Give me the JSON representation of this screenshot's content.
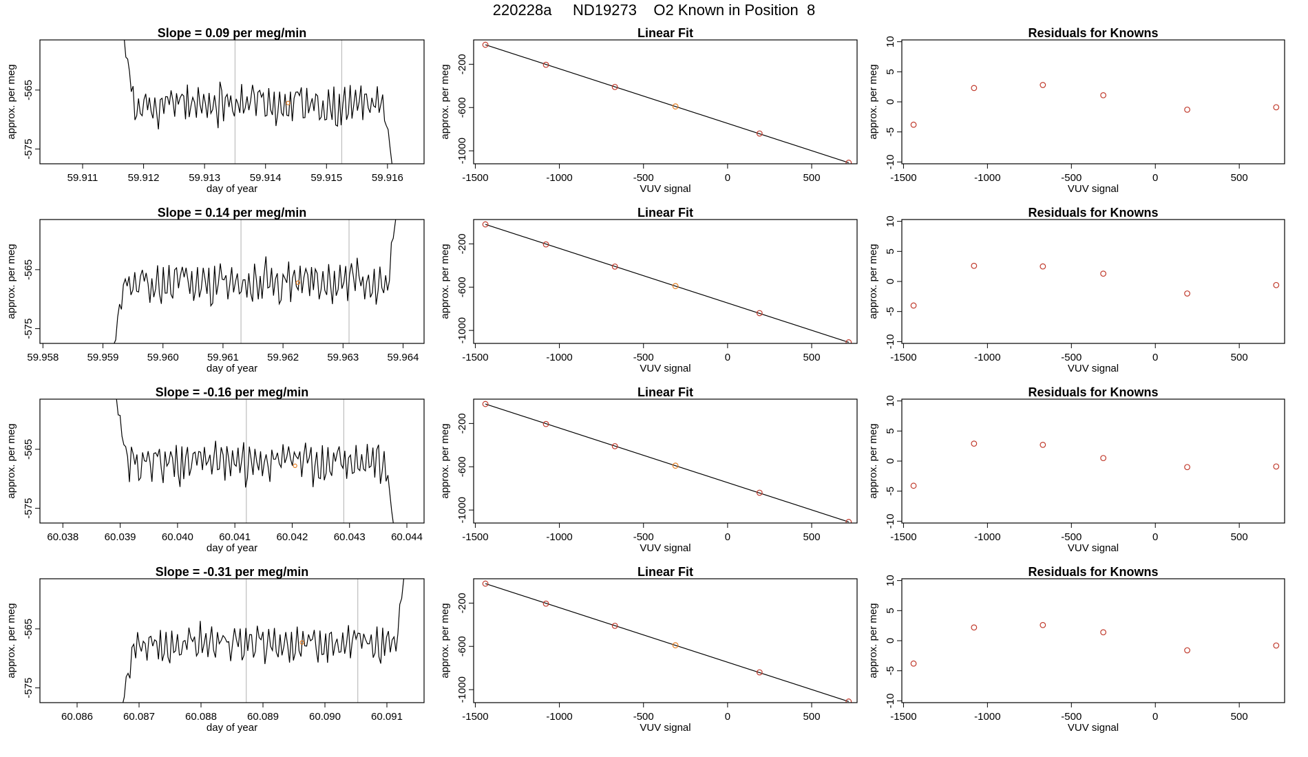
{
  "page_title": "220228a     ND19273    O2 Known in Position  8",
  "colors": {
    "line": "#000000",
    "point": "#c0392b",
    "known_point": "#e67e22",
    "marker_line": "#bdbdbd",
    "frame": "#000000"
  },
  "chart_data": [
    {
      "type": "line",
      "panel": "time-series",
      "row": 1,
      "title": "Slope =  0.09  per meg/min",
      "xlabel": "day of year",
      "ylabel": "approx. per meg",
      "xlim": [
        59.9103,
        59.9166
      ],
      "ylim": [
        -577.5,
        -556.5
      ],
      "xticks": [
        59.911,
        59.912,
        59.913,
        59.914,
        59.915,
        59.916
      ],
      "xtick_labels": [
        "59.911",
        "59.912",
        "59.913",
        "59.914",
        "59.915",
        "59.916"
      ],
      "yticks": [
        -565,
        -575
      ],
      "ytick_labels": [
        "-565",
        "-575"
      ],
      "vlines": [
        59.9135,
        59.91525
      ],
      "start": 59.91165,
      "end": 59.9161,
      "rise": "top",
      "fall": "bottom",
      "baseline": -567.5,
      "amplitude": 3.2,
      "seed": 11,
      "highlight": {
        "x": 59.91437,
        "y": -567.2
      }
    },
    {
      "type": "scatter",
      "panel": "linear-fit",
      "row": 1,
      "title": "Linear Fit",
      "xlabel": "VUV signal",
      "ylabel": "approx. per meg",
      "xlim": [
        -1510,
        770
      ],
      "ylim": [
        -1120,
        25
      ],
      "xticks": [
        -1500,
        -1000,
        -500,
        0,
        500
      ],
      "xtick_labels": [
        "-1500",
        "-1000",
        "-500",
        "0",
        "500"
      ],
      "yticks": [
        -200,
        -600,
        -1000
      ],
      "ytick_labels": [
        "-200",
        "-600",
        "-1000"
      ],
      "points": [
        [
          -1440,
          -20
        ],
        [
          -1080,
          -205
        ],
        [
          -670,
          -410
        ],
        [
          -310,
          -590
        ],
        [
          190,
          -840
        ],
        [
          720,
          -1110
        ]
      ],
      "known_index": 3,
      "fit_line": [
        [
          -1440,
          -20
        ],
        [
          720,
          -1110
        ]
      ]
    },
    {
      "type": "scatter",
      "panel": "residuals",
      "row": 1,
      "title": "Residuals for Knowns",
      "xlabel": "VUV signal",
      "ylabel": "approx. per meg",
      "xlim": [
        -1510,
        770
      ],
      "ylim": [
        -10.3,
        10.3
      ],
      "xticks": [
        -1500,
        -1000,
        -500,
        0,
        500
      ],
      "xtick_labels": [
        "-1500",
        "-1000",
        "-500",
        "0",
        "500"
      ],
      "yticks": [
        10,
        5,
        0,
        -5,
        -10
      ],
      "ytick_labels": [
        "10",
        "5",
        "0",
        "-5",
        "-10"
      ],
      "points": [
        [
          -1440,
          -3.8
        ],
        [
          -1080,
          2.3
        ],
        [
          -670,
          2.8
        ],
        [
          -310,
          1.1
        ],
        [
          190,
          -1.3
        ],
        [
          720,
          -0.9
        ]
      ]
    },
    {
      "type": "line",
      "panel": "time-series",
      "row": 2,
      "title": "Slope =  0.14  per meg/min",
      "xlabel": "day of year",
      "ylabel": "approx. per meg",
      "xlim": [
        59.95795,
        59.96435
      ],
      "ylim": [
        -577.5,
        -556.5
      ],
      "xticks": [
        59.958,
        59.959,
        59.96,
        59.961,
        59.962,
        59.963,
        59.964
      ],
      "xtick_labels": [
        "59.958",
        "59.959",
        "59.960",
        "59.961",
        "59.962",
        "59.963",
        "59.964"
      ],
      "yticks": [
        -565,
        -575
      ],
      "ytick_labels": [
        "-565",
        "-575"
      ],
      "vlines": [
        59.9613,
        59.9631
      ],
      "start": 59.95915,
      "end": 59.9639,
      "rise": "bottom",
      "fall": "top",
      "baseline": -567,
      "amplitude": 3.3,
      "seed": 23,
      "highlight": {
        "x": 59.96225,
        "y": -567.2
      }
    },
    {
      "type": "scatter",
      "panel": "linear-fit",
      "row": 2,
      "title": "Linear Fit",
      "xlabel": "VUV signal",
      "ylabel": "approx. per meg",
      "xlim": [
        -1510,
        770
      ],
      "ylim": [
        -1120,
        25
      ],
      "xticks": [
        -1500,
        -1000,
        -500,
        0,
        500
      ],
      "xtick_labels": [
        "-1500",
        "-1000",
        "-500",
        "0",
        "500"
      ],
      "yticks": [
        -200,
        -600,
        -1000
      ],
      "ytick_labels": [
        "-200",
        "-600",
        "-1000"
      ],
      "points": [
        [
          -1440,
          -20
        ],
        [
          -1080,
          -205
        ],
        [
          -670,
          -410
        ],
        [
          -310,
          -590
        ],
        [
          190,
          -840
        ],
        [
          720,
          -1110
        ]
      ],
      "known_index": 3,
      "fit_line": [
        [
          -1440,
          -20
        ],
        [
          720,
          -1110
        ]
      ]
    },
    {
      "type": "scatter",
      "panel": "residuals",
      "row": 2,
      "title": "Residuals for Knowns",
      "xlabel": "VUV signal",
      "ylabel": "approx. per meg",
      "xlim": [
        -1510,
        770
      ],
      "ylim": [
        -10.3,
        10.3
      ],
      "xticks": [
        -1500,
        -1000,
        -500,
        0,
        500
      ],
      "xtick_labels": [
        "-1500",
        "-1000",
        "-500",
        "0",
        "500"
      ],
      "yticks": [
        10,
        5,
        0,
        -5,
        -10
      ],
      "ytick_labels": [
        "10",
        "5",
        "0",
        "-5",
        "-10"
      ],
      "points": [
        [
          -1440,
          -4.0
        ],
        [
          -1080,
          2.6
        ],
        [
          -670,
          2.5
        ],
        [
          -310,
          1.3
        ],
        [
          190,
          -2.0
        ],
        [
          720,
          -0.6
        ]
      ]
    },
    {
      "type": "line",
      "panel": "time-series",
      "row": 3,
      "title": "Slope =  -0.16  per meg/min",
      "xlabel": "day of year",
      "ylabel": "approx. per meg",
      "xlim": [
        60.0376,
        60.0443
      ],
      "ylim": [
        -577.5,
        -556.5
      ],
      "xticks": [
        60.038,
        60.039,
        60.04,
        60.041,
        60.042,
        60.043,
        60.044
      ],
      "xtick_labels": [
        "60.038",
        "60.039",
        "60.040",
        "60.041",
        "60.042",
        "60.043",
        "60.044"
      ],
      "yticks": [
        -565,
        -575
      ],
      "ytick_labels": [
        "-565",
        "-575"
      ],
      "vlines": [
        60.0412,
        60.0429
      ],
      "start": 60.0389,
      "end": 60.0438,
      "rise": "top",
      "fall": "bottom",
      "baseline": -567.3,
      "amplitude": 3.1,
      "seed": 37,
      "highlight": {
        "x": 60.04205,
        "y": -567.8
      }
    },
    {
      "type": "scatter",
      "panel": "linear-fit",
      "row": 3,
      "title": "Linear Fit",
      "xlabel": "VUV signal",
      "ylabel": "approx. per meg",
      "xlim": [
        -1510,
        770
      ],
      "ylim": [
        -1120,
        25
      ],
      "xticks": [
        -1500,
        -1000,
        -500,
        0,
        500
      ],
      "xtick_labels": [
        "-1500",
        "-1000",
        "-500",
        "0",
        "500"
      ],
      "yticks": [
        -200,
        -600,
        -1000
      ],
      "ytick_labels": [
        "-200",
        "-600",
        "-1000"
      ],
      "points": [
        [
          -1440,
          -20
        ],
        [
          -1080,
          -205
        ],
        [
          -670,
          -410
        ],
        [
          -310,
          -590
        ],
        [
          190,
          -840
        ],
        [
          720,
          -1110
        ]
      ],
      "known_index": 3,
      "fit_line": [
        [
          -1440,
          -20
        ],
        [
          720,
          -1110
        ]
      ]
    },
    {
      "type": "scatter",
      "panel": "residuals",
      "row": 3,
      "title": "Residuals for Knowns",
      "xlabel": "VUV signal",
      "ylabel": "approx. per meg",
      "xlim": [
        -1510,
        770
      ],
      "ylim": [
        -10.3,
        10.3
      ],
      "xticks": [
        -1500,
        -1000,
        -500,
        0,
        500
      ],
      "xtick_labels": [
        "-1500",
        "-1000",
        "-500",
        "0",
        "500"
      ],
      "yticks": [
        10,
        5,
        0,
        -5,
        -10
      ],
      "ytick_labels": [
        "10",
        "5",
        "0",
        "-5",
        "-10"
      ],
      "points": [
        [
          -1440,
          -4.1
        ],
        [
          -1080,
          2.9
        ],
        [
          -670,
          2.7
        ],
        [
          -310,
          0.5
        ],
        [
          190,
          -1.0
        ],
        [
          720,
          -0.9
        ]
      ]
    },
    {
      "type": "line",
      "panel": "time-series",
      "row": 4,
      "title": "Slope =  -0.31  per meg/min",
      "xlabel": "day of year",
      "ylabel": "approx. per meg",
      "xlim": [
        60.0854,
        60.0916
      ],
      "ylim": [
        -577.5,
        -556.5
      ],
      "xticks": [
        60.086,
        60.087,
        60.088,
        60.089,
        60.09,
        60.091
      ],
      "xtick_labels": [
        "60.086",
        "60.087",
        "60.088",
        "60.089",
        "60.090",
        "60.091"
      ],
      "yticks": [
        -565,
        -575
      ],
      "ytick_labels": [
        "-565",
        "-575"
      ],
      "vlines": [
        60.08873,
        60.09053
      ],
      "start": 60.0867,
      "end": 60.0913,
      "rise": "bottom",
      "fall": "top",
      "baseline": -567.5,
      "amplitude": 3.0,
      "seed": 53,
      "highlight": {
        "x": 60.08963,
        "y": -567.3
      }
    },
    {
      "type": "scatter",
      "panel": "linear-fit",
      "row": 4,
      "title": "Linear Fit",
      "xlabel": "VUV signal",
      "ylabel": "approx. per meg",
      "xlim": [
        -1510,
        770
      ],
      "ylim": [
        -1120,
        25
      ],
      "xticks": [
        -1500,
        -1000,
        -500,
        0,
        500
      ],
      "xtick_labels": [
        "-1500",
        "-1000",
        "-500",
        "0",
        "500"
      ],
      "yticks": [
        -200,
        -600,
        -1000
      ],
      "ytick_labels": [
        "-200",
        "-600",
        "-1000"
      ],
      "points": [
        [
          -1440,
          -20
        ],
        [
          -1080,
          -205
        ],
        [
          -670,
          -410
        ],
        [
          -310,
          -590
        ],
        [
          190,
          -840
        ],
        [
          720,
          -1110
        ]
      ],
      "known_index": 3,
      "fit_line": [
        [
          -1440,
          -20
        ],
        [
          720,
          -1110
        ]
      ]
    },
    {
      "type": "scatter",
      "panel": "residuals",
      "row": 4,
      "title": "Residuals for Knowns",
      "xlabel": "VUV signal",
      "ylabel": "approx. per meg",
      "xlim": [
        -1510,
        770
      ],
      "ylim": [
        -10.3,
        10.3
      ],
      "xticks": [
        -1500,
        -1000,
        -500,
        0,
        500
      ],
      "xtick_labels": [
        "-1500",
        "-1000",
        "-500",
        "0",
        "500"
      ],
      "yticks": [
        10,
        5,
        0,
        -5,
        -10
      ],
      "ytick_labels": [
        "10",
        "5",
        "0",
        "-5",
        "-10"
      ],
      "points": [
        [
          -1440,
          -3.8
        ],
        [
          -1080,
          2.2
        ],
        [
          -670,
          2.6
        ],
        [
          -310,
          1.4
        ],
        [
          190,
          -1.6
        ],
        [
          720,
          -0.8
        ]
      ]
    }
  ]
}
